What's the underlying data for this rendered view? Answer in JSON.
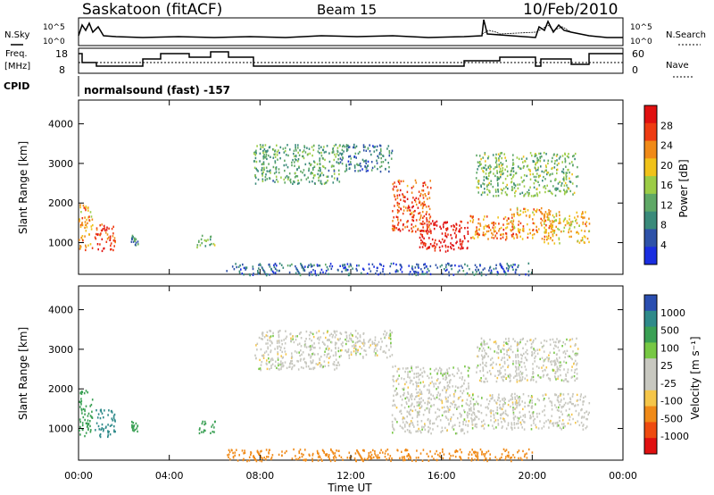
{
  "header": {
    "title": "Saskatoon (fitACF)",
    "beam": "Beam 15",
    "date": "10/Feb/2010"
  },
  "status_panel": {
    "nsky_label": "N.Sky",
    "nsearch_label": "N.Search",
    "noise_ticks_left": [
      "10^5",
      "10^0"
    ],
    "noise_ticks_right": [
      "10^5",
      "10^0"
    ],
    "freq_label_1": "Freq.",
    "freq_label_2": "[MHz]",
    "freq_ticks": [
      "18",
      "8"
    ],
    "nave_label": "Nave",
    "nave_ticks": [
      "60",
      "0"
    ],
    "cpid_label": "CPID",
    "cpid_text": "normalsound (fast) -157"
  },
  "colors": {
    "power_scale": [
      "#1a2ee0",
      "#2e52a8",
      "#3a8a7a",
      "#5fa866",
      "#9ccc46",
      "#f0c21a",
      "#f08a18",
      "#ee3b12",
      "#e01010"
    ],
    "velocity_scale": [
      "#e01010",
      "#ee4b10",
      "#f08a18",
      "#f5c64a",
      "#c8c8c0",
      "#c8c8c0",
      "#77c844",
      "#3aa054",
      "#2f8a8a",
      "#2a4eb0"
    ],
    "noise_line": "#000000",
    "background": "#ffffff"
  },
  "chart_data": [
    {
      "type": "heatmap",
      "name": "power",
      "xlabel": "",
      "ylabel": "Slant Range [km]",
      "xlim": [
        0,
        24
      ],
      "ylim": [
        200,
        4600
      ],
      "y_ticks": [
        "1000",
        "2000",
        "3000",
        "4000"
      ],
      "colorbar_label": "Power [dB]",
      "colorbar_ticks": [
        "4",
        "8",
        "12",
        "16",
        "20",
        "24",
        "28"
      ],
      "colorbar_range": [
        0,
        32
      ],
      "regions": [
        {
          "t0": 0.0,
          "t1": 0.6,
          "r0": 800,
          "r1": 2000,
          "value": 22
        },
        {
          "t0": 0.7,
          "t1": 1.6,
          "r0": 800,
          "r1": 1500,
          "value": 28
        },
        {
          "t0": 2.3,
          "t1": 2.6,
          "r0": 950,
          "r1": 1200,
          "value": 10
        },
        {
          "t0": 5.2,
          "t1": 6.0,
          "r0": 900,
          "r1": 1200,
          "value": 14
        },
        {
          "t0": 7.7,
          "t1": 11.5,
          "r0": 2500,
          "r1": 3500,
          "value": 12
        },
        {
          "t0": 11.5,
          "t1": 13.8,
          "r0": 2800,
          "r1": 3500,
          "value": 8
        },
        {
          "t0": 13.8,
          "t1": 15.5,
          "r0": 1300,
          "r1": 2600,
          "value": 26
        },
        {
          "t0": 15.0,
          "t1": 17.2,
          "r0": 800,
          "r1": 1600,
          "value": 30
        },
        {
          "t0": 17.2,
          "t1": 19.2,
          "r0": 1100,
          "r1": 1700,
          "value": 24
        },
        {
          "t0": 19.0,
          "t1": 20.8,
          "r0": 1100,
          "r1": 1900,
          "value": 22
        },
        {
          "t0": 20.5,
          "t1": 22.5,
          "r0": 1000,
          "r1": 1800,
          "value": 20
        },
        {
          "t0": 17.5,
          "t1": 22.0,
          "r0": 2200,
          "r1": 3300,
          "value": 14
        },
        {
          "t0": 6.5,
          "t1": 20.0,
          "r0": 200,
          "r1": 500,
          "value": 6
        }
      ]
    },
    {
      "type": "heatmap",
      "name": "velocity",
      "xlabel": "Time UT",
      "ylabel": "Slant Range [km]",
      "xlim": [
        0,
        24
      ],
      "ylim": [
        200,
        4600
      ],
      "y_ticks": [
        "1000",
        "2000",
        "3000",
        "4000"
      ],
      "x_ticks": [
        "00:00",
        "04:00",
        "08:00",
        "12:00",
        "16:00",
        "20:00",
        "00:00"
      ],
      "colorbar_label": "Velocity [m s⁻¹]",
      "colorbar_ticks": [
        "1000",
        "500",
        "100",
        "25",
        "-25",
        "-100",
        "-500",
        "-1000"
      ],
      "regions": [
        {
          "t0": 0.0,
          "t1": 0.6,
          "r0": 800,
          "r1": 2000,
          "value": 150
        },
        {
          "t0": 0.7,
          "t1": 1.6,
          "r0": 800,
          "r1": 1500,
          "value": 600
        },
        {
          "t0": 2.3,
          "t1": 2.6,
          "r0": 950,
          "r1": 1200,
          "value": 300
        },
        {
          "t0": 5.2,
          "t1": 6.0,
          "r0": 900,
          "r1": 1200,
          "value": 400
        },
        {
          "t0": 7.7,
          "t1": 11.5,
          "r0": 2500,
          "r1": 3500,
          "value": 0
        },
        {
          "t0": 11.5,
          "t1": 13.8,
          "r0": 2800,
          "r1": 3500,
          "value": 0
        },
        {
          "t0": 13.8,
          "t1": 17.2,
          "r0": 900,
          "r1": 2600,
          "value": 0
        },
        {
          "t0": 17.2,
          "t1": 22.5,
          "r0": 1000,
          "r1": 1900,
          "value": 0
        },
        {
          "t0": 17.5,
          "t1": 22.0,
          "r0": 2200,
          "r1": 3300,
          "value": 0
        },
        {
          "t0": 6.5,
          "t1": 20.0,
          "r0": 200,
          "r1": 500,
          "value": -150
        }
      ]
    }
  ]
}
